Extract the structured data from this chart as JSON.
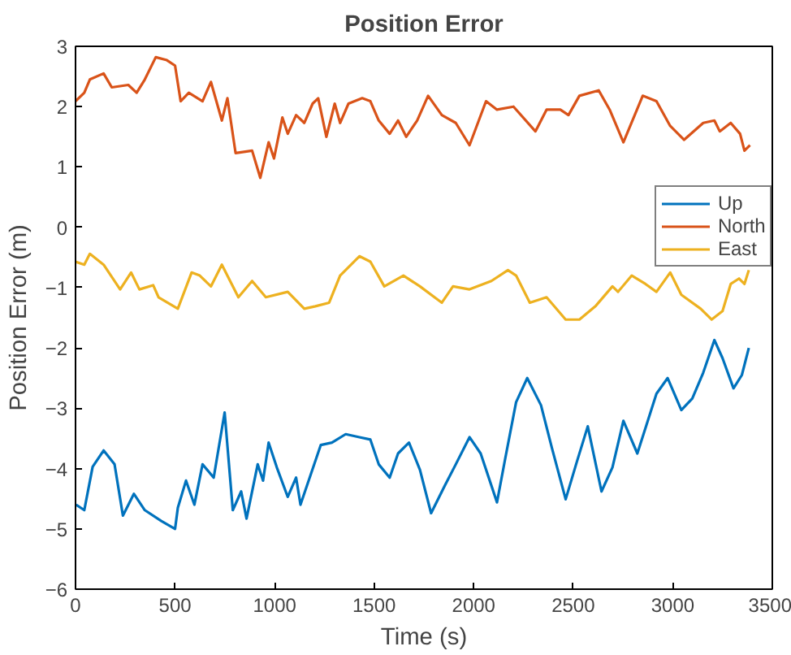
{
  "chart_data": {
    "type": "line",
    "title": "Position Error",
    "xlabel": "Time (s)",
    "ylabel": "Position Error (m)",
    "xlim": [
      0,
      3500
    ],
    "ylim": [
      -6,
      3
    ],
    "xticks": [
      0,
      500,
      1000,
      1500,
      2000,
      2500,
      3000,
      3500
    ],
    "yticks": [
      -6,
      -5,
      -4,
      -3,
      -2,
      -1,
      0,
      1,
      2,
      3
    ],
    "grid": false,
    "legend": "top right",
    "line_style": "solid",
    "marker": "none",
    "series": [
      {
        "name": "Up",
        "color": "#0072bd",
        "x": [
          3,
          44,
          86,
          141,
          196,
          238,
          293,
          348,
          431,
          500,
          514,
          555,
          597,
          638,
          694,
          749,
          790,
          832,
          859,
          915,
          942,
          970,
          1011,
          1066,
          1108,
          1130,
          1232,
          1288,
          1357,
          1426,
          1481,
          1523,
          1578,
          1620,
          1675,
          1730,
          1786,
          1854,
          1910,
          1979,
          2035,
          2117,
          2158,
          2213,
          2269,
          2338,
          2393,
          2462,
          2518,
          2573,
          2642,
          2697,
          2752,
          2822,
          2918,
          2974,
          3043,
          3098,
          3153,
          3209,
          3250,
          3305,
          3347,
          3382
        ],
        "values": [
          -4.6,
          -4.69,
          -3.97,
          -3.7,
          -3.93,
          -4.78,
          -4.42,
          -4.69,
          -4.87,
          -5.0,
          -4.65,
          -4.2,
          -4.6,
          -3.93,
          -4.15,
          -3.07,
          -4.69,
          -4.38,
          -4.83,
          -3.93,
          -4.2,
          -3.57,
          -3.98,
          -4.47,
          -4.15,
          -4.6,
          -3.61,
          -3.57,
          -3.43,
          -3.48,
          -3.52,
          -3.93,
          -4.15,
          -3.75,
          -3.57,
          -4.02,
          -4.74,
          -4.29,
          -3.93,
          -3.48,
          -3.75,
          -4.56,
          -3.84,
          -2.9,
          -2.5,
          -2.95,
          -3.66,
          -4.51,
          -3.89,
          -3.3,
          -4.38,
          -3.98,
          -3.21,
          -3.75,
          -2.76,
          -2.5,
          -3.03,
          -2.84,
          -2.41,
          -1.87,
          -2.17,
          -2.67,
          -2.45,
          -2.0
        ]
      },
      {
        "name": "North",
        "color": "#d95319",
        "x": [
          0,
          44,
          72,
          141,
          182,
          265,
          307,
          348,
          403,
          459,
          500,
          528,
          569,
          638,
          680,
          735,
          763,
          804,
          887,
          928,
          970,
          997,
          1039,
          1066,
          1108,
          1149,
          1191,
          1219,
          1260,
          1302,
          1329,
          1371,
          1440,
          1481,
          1523,
          1578,
          1620,
          1661,
          1716,
          1771,
          1840,
          1910,
          1979,
          2062,
          2117,
          2200,
          2310,
          2366,
          2435,
          2476,
          2531,
          2628,
          2683,
          2752,
          2849,
          2918,
          2987,
          3057,
          3153,
          3209,
          3236,
          3291,
          3338,
          3360,
          3388
        ],
        "values": [
          2.09,
          2.23,
          2.45,
          2.55,
          2.32,
          2.36,
          2.23,
          2.45,
          2.82,
          2.77,
          2.68,
          2.09,
          2.23,
          2.09,
          2.41,
          1.77,
          2.14,
          1.23,
          1.27,
          0.82,
          1.41,
          1.14,
          1.82,
          1.55,
          1.86,
          1.73,
          2.05,
          2.14,
          1.5,
          2.05,
          1.73,
          2.05,
          2.14,
          2.09,
          1.77,
          1.55,
          1.77,
          1.5,
          1.77,
          2.18,
          1.86,
          1.73,
          1.36,
          2.09,
          1.95,
          2.0,
          1.59,
          1.95,
          1.95,
          1.86,
          2.18,
          2.27,
          1.95,
          1.41,
          2.18,
          2.09,
          1.68,
          1.45,
          1.73,
          1.77,
          1.59,
          1.73,
          1.55,
          1.27,
          1.36
        ]
      },
      {
        "name": "East",
        "color": "#edb120",
        "x": [
          0,
          44,
          72,
          141,
          224,
          279,
          321,
          390,
          417,
          514,
          583,
          624,
          680,
          735,
          818,
          887,
          956,
          1066,
          1149,
          1205,
          1274,
          1329,
          1426,
          1481,
          1551,
          1647,
          1730,
          1840,
          1896,
          1979,
          2089,
          2172,
          2213,
          2282,
          2366,
          2462,
          2531,
          2614,
          2697,
          2725,
          2794,
          2863,
          2918,
          2987,
          3043,
          3140,
          3195,
          3250,
          3291,
          3333,
          3360,
          3382
        ],
        "values": [
          -0.57,
          -0.62,
          -0.44,
          -0.62,
          -1.03,
          -0.75,
          -1.03,
          -0.96,
          -1.16,
          -1.35,
          -0.75,
          -0.8,
          -0.98,
          -0.62,
          -1.16,
          -0.89,
          -1.16,
          -1.07,
          -1.35,
          -1.31,
          -1.25,
          -0.8,
          -0.48,
          -0.57,
          -0.98,
          -0.8,
          -0.98,
          -1.25,
          -0.98,
          -1.03,
          -0.89,
          -0.71,
          -0.8,
          -1.25,
          -1.16,
          -1.53,
          -1.53,
          -1.3,
          -0.98,
          -1.07,
          -0.8,
          -0.94,
          -1.07,
          -0.75,
          -1.12,
          -1.35,
          -1.53,
          -1.39,
          -0.94,
          -0.85,
          -0.94,
          -0.71
        ]
      }
    ]
  }
}
